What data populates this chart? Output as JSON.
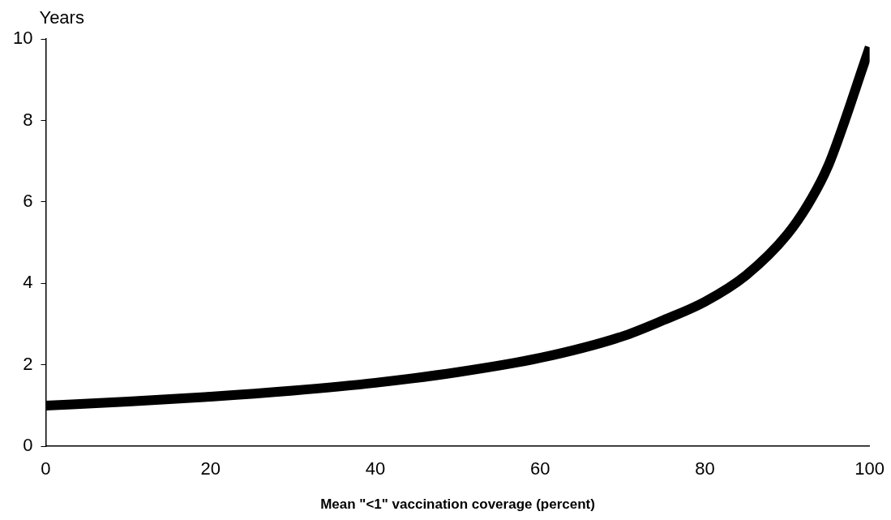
{
  "chart_data": {
    "type": "line",
    "xlabel": "Mean \"<1\" vaccination coverage (percent)",
    "ylabel": "Years",
    "series": [
      {
        "color": "#000000",
        "x": [
          0,
          10,
          20,
          30,
          40,
          50,
          60,
          70,
          75,
          80,
          85,
          90,
          93,
          95,
          97,
          99,
          100
        ],
        "values": [
          1.0,
          1.1,
          1.22,
          1.37,
          1.56,
          1.82,
          2.17,
          2.7,
          3.1,
          3.55,
          4.2,
          5.2,
          6.1,
          6.9,
          8.0,
          9.2,
          9.8
        ]
      }
    ],
    "xlim": [
      0,
      100
    ],
    "xticks": [
      0,
      20,
      40,
      60,
      80,
      100
    ],
    "ylim": [
      0,
      10
    ],
    "yticks": [
      0,
      2,
      4,
      6,
      8,
      10
    ],
    "grid": false,
    "legend": false,
    "marker": "none",
    "line_style": "solid"
  }
}
